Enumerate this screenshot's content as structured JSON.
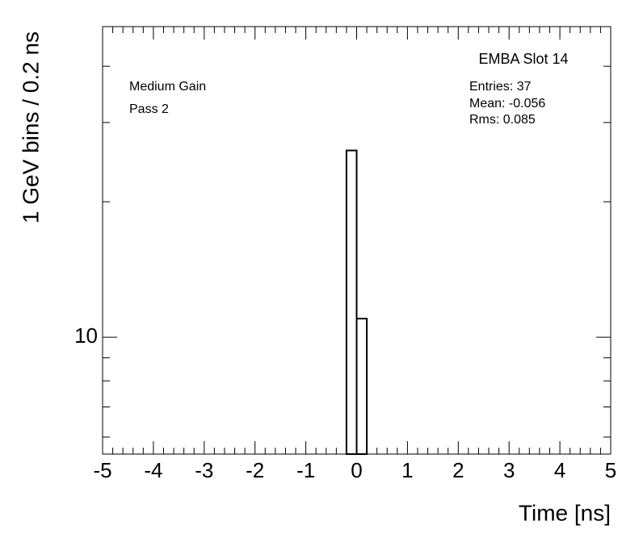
{
  "chart_data": {
    "type": "histogram",
    "title": "EMBA Slot 14",
    "x_label": "Time [ns]",
    "y_label": "1 GeV bins / 0.2 ns",
    "annotations": [
      "Medium Gain",
      "Pass 2"
    ],
    "stats": [
      "Entries: 37",
      "Mean: -0.056",
      "Rms: 0.085"
    ],
    "bins": [
      -0.2,
      0,
      0.2
    ],
    "values": [
      26,
      11
    ],
    "color": "#000000",
    "xlim": [
      -5,
      5
    ],
    "xticks": [
      -5,
      -4,
      -3,
      -2,
      -1,
      0,
      1,
      2,
      3,
      4,
      5
    ],
    "ylim": [
      5.5,
      49
    ],
    "yticks": [
      10
    ],
    "yminor_ticks": [
      6,
      7,
      8,
      9,
      20,
      30,
      40
    ],
    "log_y": true
  }
}
